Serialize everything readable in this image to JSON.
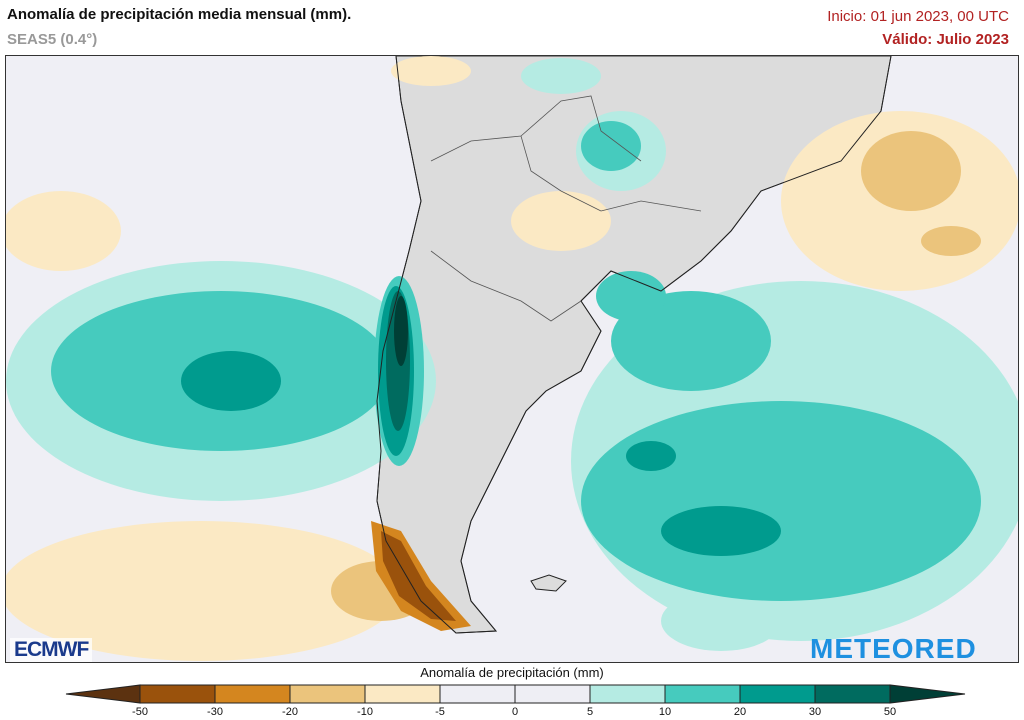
{
  "header": {
    "title": "Anomalía de precipitación media mensual (mm).",
    "subtitle": "SEAS5 (0.4°)",
    "init": "Inicio: 01 jun 2023, 00 UTC",
    "valid": "Válido: Julio 2023"
  },
  "logos": {
    "left": "ECMWF",
    "right": "METEORED"
  },
  "colorbar": {
    "title": "Anomalía de precipitación (mm)",
    "ticks": [
      "-50",
      "-30",
      "-20",
      "-10",
      "-5",
      "0",
      "5",
      "10",
      "20",
      "30",
      "50"
    ],
    "colors": [
      "#5c3210",
      "#9a520c",
      "#d4861f",
      "#ebc47c",
      "#fbe9c4",
      "#eeeef4",
      "#eeeef4",
      "#b5ebe3",
      "#46cbbe",
      "#009b8e",
      "#006b5f",
      "#003f36"
    ]
  },
  "map": {
    "region": "South America (southern cone)",
    "ocean_color": "#efeff5",
    "land_color": "#dcdcdc"
  }
}
